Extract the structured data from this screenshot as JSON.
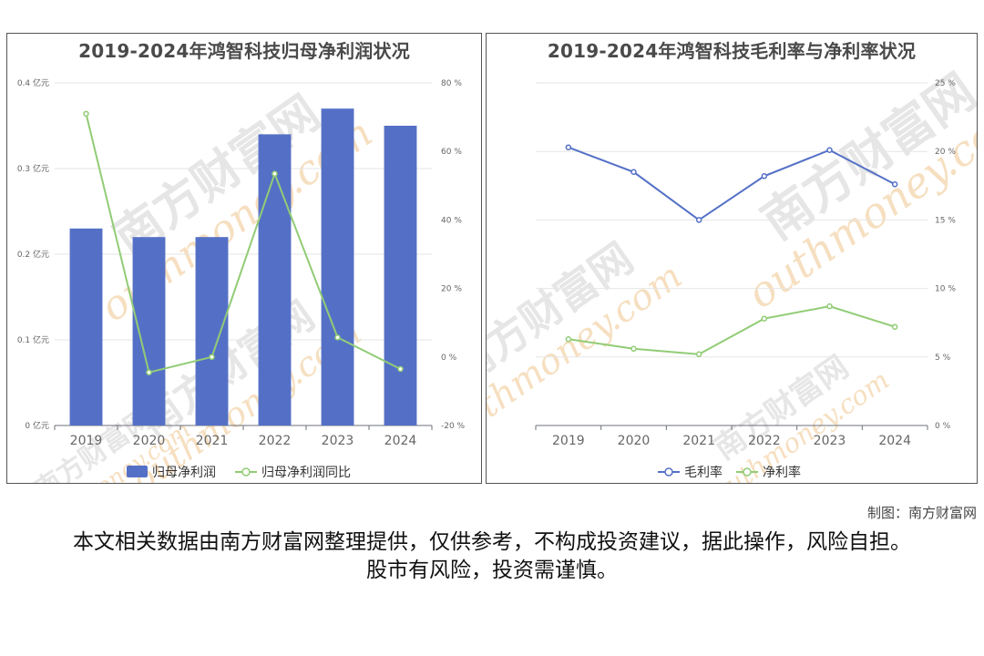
{
  "left_chart": {
    "title": "2019-2024年鸿智科技归母净利润状况",
    "legend": [
      "归母净利润",
      "归母净利润同比"
    ]
  },
  "right_chart": {
    "title": "2019-2024年鸿智科技毛利率与净利率状况",
    "legend": [
      "毛利率",
      "净利率"
    ]
  },
  "watermark": {
    "cn": "南方财富网",
    "en": "outhmoney.com"
  },
  "credit": "制图：南方财富网",
  "disclaimer": "本文相关数据由南方财富网整理提供，仅供参考，不构成投资建议，据此操作，风险自担。股市有风险，投资需谨慎。",
  "colors": {
    "bar": "#5470c6",
    "green": "#91cc75",
    "blue_line": "#5470c6",
    "watermark": "#f7d9b0"
  },
  "chart_data": [
    {
      "type": "bar",
      "title": "2019-2024年鸿智科技归母净利润状况",
      "categories": [
        "2019",
        "2020",
        "2021",
        "2022",
        "2023",
        "2024"
      ],
      "series": [
        {
          "name": "归母净利润",
          "type": "bar",
          "axis": "left",
          "values": [
            0.23,
            0.22,
            0.22,
            0.34,
            0.37,
            0.35
          ]
        },
        {
          "name": "归母净利润同比",
          "type": "line",
          "axis": "right",
          "values": [
            71.0,
            -4.5,
            0.0,
            53.5,
            5.7,
            -3.5
          ]
        }
      ],
      "y_left": {
        "ticks": [
          0,
          0.1,
          0.2,
          0.3,
          0.4
        ],
        "unit": "亿元",
        "ylim": [
          0,
          0.4
        ]
      },
      "y_right": {
        "ticks": [
          -20,
          0,
          20,
          40,
          60,
          80
        ],
        "unit": "%",
        "ylim": [
          -20,
          80
        ]
      },
      "grid": true,
      "legend_position": "bottom"
    },
    {
      "type": "line",
      "title": "2019-2024年鸿智科技毛利率与净利率状况",
      "categories": [
        "2019",
        "2020",
        "2021",
        "2022",
        "2023",
        "2024"
      ],
      "series": [
        {
          "name": "毛利率",
          "values": [
            20.3,
            18.5,
            15.0,
            18.2,
            20.1,
            17.6
          ]
        },
        {
          "name": "净利率",
          "values": [
            6.3,
            5.6,
            5.2,
            7.8,
            8.7,
            7.2
          ]
        }
      ],
      "y_right": {
        "ticks": [
          0,
          5,
          10,
          15,
          20,
          25
        ],
        "unit": "%",
        "ylim": [
          0,
          25
        ]
      },
      "grid": true,
      "legend_position": "bottom"
    }
  ]
}
